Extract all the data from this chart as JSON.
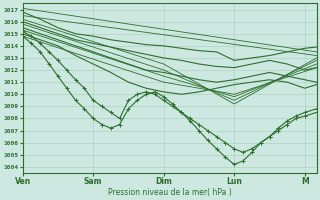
{
  "xlabel": "Pression niveau de la mer( hPa )",
  "ylim": [
    1003.5,
    1017.5
  ],
  "yticks": [
    1004,
    1005,
    1006,
    1007,
    1008,
    1009,
    1010,
    1011,
    1012,
    1013,
    1014,
    1015,
    1016,
    1017
  ],
  "day_labels": [
    "Ven",
    "Sam",
    "Dim",
    "Lun",
    "M"
  ],
  "day_positions": [
    0,
    24,
    48,
    72,
    96
  ],
  "xlim": [
    0,
    100
  ],
  "bg_color": "#cce8e0",
  "grid_color": "#aaccbb",
  "line_color": "#2d6e2d",
  "lines_solid_nomarker": [
    [
      [
        0,
        1016.8
      ],
      [
        6,
        1016.2
      ],
      [
        12,
        1015.5
      ],
      [
        18,
        1015.0
      ],
      [
        24,
        1014.8
      ],
      [
        30,
        1014.5
      ],
      [
        36,
        1014.3
      ],
      [
        42,
        1014.1
      ],
      [
        48,
        1014.0
      ],
      [
        54,
        1013.8
      ],
      [
        60,
        1013.6
      ],
      [
        66,
        1013.5
      ],
      [
        72,
        1012.8
      ],
      [
        78,
        1013.0
      ],
      [
        84,
        1013.2
      ],
      [
        90,
        1013.5
      ],
      [
        96,
        1013.8
      ],
      [
        100,
        1013.9
      ]
    ],
    [
      [
        0,
        1016.0
      ],
      [
        6,
        1015.5
      ],
      [
        12,
        1015.0
      ],
      [
        18,
        1014.5
      ],
      [
        24,
        1014.2
      ],
      [
        30,
        1013.9
      ],
      [
        36,
        1013.6
      ],
      [
        42,
        1013.3
      ],
      [
        48,
        1013.0
      ],
      [
        54,
        1012.8
      ],
      [
        60,
        1012.5
      ],
      [
        66,
        1012.3
      ],
      [
        72,
        1012.2
      ],
      [
        78,
        1012.5
      ],
      [
        84,
        1012.8
      ],
      [
        90,
        1012.5
      ],
      [
        96,
        1012.0
      ],
      [
        100,
        1012.2
      ]
    ],
    [
      [
        0,
        1015.5
      ],
      [
        6,
        1015.0
      ],
      [
        12,
        1014.5
      ],
      [
        18,
        1014.0
      ],
      [
        24,
        1013.5
      ],
      [
        30,
        1013.0
      ],
      [
        36,
        1012.5
      ],
      [
        42,
        1012.0
      ],
      [
        48,
        1011.8
      ],
      [
        54,
        1011.5
      ],
      [
        60,
        1011.2
      ],
      [
        66,
        1011.0
      ],
      [
        72,
        1011.2
      ],
      [
        78,
        1011.5
      ],
      [
        84,
        1011.8
      ],
      [
        90,
        1011.5
      ],
      [
        96,
        1011.2
      ],
      [
        100,
        1011.0
      ]
    ],
    [
      [
        0,
        1015.0
      ],
      [
        6,
        1014.5
      ],
      [
        12,
        1014.0
      ],
      [
        18,
        1013.2
      ],
      [
        24,
        1012.5
      ],
      [
        30,
        1011.8
      ],
      [
        36,
        1011.0
      ],
      [
        42,
        1010.5
      ],
      [
        48,
        1010.2
      ],
      [
        54,
        1010.0
      ],
      [
        60,
        1010.2
      ],
      [
        66,
        1010.5
      ],
      [
        72,
        1010.8
      ],
      [
        78,
        1011.0
      ],
      [
        84,
        1011.2
      ],
      [
        90,
        1011.0
      ],
      [
        96,
        1010.5
      ],
      [
        100,
        1010.8
      ]
    ]
  ],
  "lines_solid_marker": [
    [
      [
        0,
        1015.2
      ],
      [
        3,
        1014.8
      ],
      [
        6,
        1014.2
      ],
      [
        9,
        1013.5
      ],
      [
        12,
        1012.8
      ],
      [
        15,
        1012.0
      ],
      [
        18,
        1011.2
      ],
      [
        21,
        1010.5
      ],
      [
        24,
        1009.5
      ],
      [
        27,
        1009.0
      ],
      [
        30,
        1008.5
      ],
      [
        33,
        1008.0
      ],
      [
        36,
        1009.5
      ],
      [
        39,
        1010.0
      ],
      [
        42,
        1010.2
      ],
      [
        45,
        1010.0
      ],
      [
        48,
        1009.5
      ],
      [
        51,
        1009.0
      ],
      [
        54,
        1008.5
      ],
      [
        57,
        1008.0
      ],
      [
        60,
        1007.5
      ],
      [
        63,
        1007.0
      ],
      [
        66,
        1006.5
      ],
      [
        69,
        1006.0
      ],
      [
        72,
        1005.5
      ],
      [
        75,
        1005.2
      ],
      [
        78,
        1005.5
      ],
      [
        81,
        1006.0
      ],
      [
        84,
        1006.5
      ],
      [
        87,
        1007.0
      ],
      [
        90,
        1007.5
      ],
      [
        93,
        1008.0
      ],
      [
        96,
        1008.2
      ],
      [
        100,
        1008.5
      ]
    ],
    [
      [
        0,
        1014.8
      ],
      [
        3,
        1014.2
      ],
      [
        6,
        1013.5
      ],
      [
        9,
        1012.5
      ],
      [
        12,
        1011.5
      ],
      [
        15,
        1010.5
      ],
      [
        18,
        1009.5
      ],
      [
        21,
        1008.8
      ],
      [
        24,
        1008.0
      ],
      [
        27,
        1007.5
      ],
      [
        30,
        1007.2
      ],
      [
        33,
        1007.5
      ],
      [
        36,
        1008.8
      ],
      [
        39,
        1009.5
      ],
      [
        42,
        1010.0
      ],
      [
        45,
        1010.2
      ],
      [
        48,
        1009.8
      ],
      [
        51,
        1009.2
      ],
      [
        54,
        1008.5
      ],
      [
        57,
        1007.8
      ],
      [
        60,
        1007.0
      ],
      [
        63,
        1006.2
      ],
      [
        66,
        1005.5
      ],
      [
        69,
        1004.8
      ],
      [
        72,
        1004.2
      ],
      [
        75,
        1004.5
      ],
      [
        78,
        1005.2
      ],
      [
        81,
        1006.0
      ],
      [
        84,
        1006.5
      ],
      [
        87,
        1007.2
      ],
      [
        90,
        1007.8
      ],
      [
        93,
        1008.2
      ],
      [
        96,
        1008.5
      ],
      [
        100,
        1008.8
      ]
    ]
  ],
  "lines_thin_solid": [
    [
      [
        0,
        1017.1
      ],
      [
        100,
        1013.5
      ]
    ],
    [
      [
        0,
        1016.5
      ],
      [
        100,
        1013.2
      ]
    ],
    [
      [
        0,
        1016.2
      ],
      [
        48,
        1012.5
      ],
      [
        72,
        1009.2
      ],
      [
        100,
        1013.0
      ]
    ],
    [
      [
        0,
        1015.8
      ],
      [
        48,
        1012.0
      ],
      [
        72,
        1009.5
      ],
      [
        100,
        1012.8
      ]
    ],
    [
      [
        0,
        1015.3
      ],
      [
        48,
        1011.5
      ],
      [
        72,
        1009.8
      ],
      [
        100,
        1012.5
      ]
    ],
    [
      [
        0,
        1014.8
      ],
      [
        48,
        1011.0
      ],
      [
        72,
        1010.0
      ],
      [
        100,
        1012.2
      ]
    ]
  ]
}
